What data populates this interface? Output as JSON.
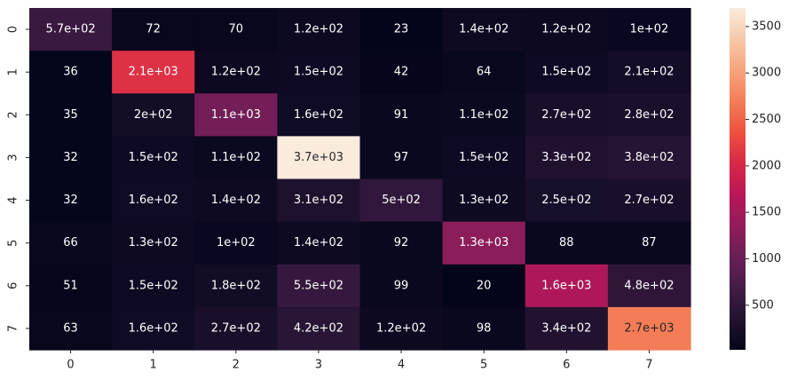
{
  "chart_data": {
    "type": "heatmap",
    "title": "",
    "xlabel": "",
    "ylabel": "",
    "x_categories": [
      "0",
      "1",
      "2",
      "3",
      "4",
      "5",
      "6",
      "7"
    ],
    "y_categories": [
      "0",
      "1",
      "2",
      "3",
      "4",
      "5",
      "6",
      "7"
    ],
    "values": [
      [
        570,
        72,
        70,
        120,
        23,
        140,
        120,
        100
      ],
      [
        36,
        2100,
        120,
        150,
        42,
        64,
        150,
        210
      ],
      [
        35,
        200,
        1100,
        160,
        91,
        110,
        270,
        280
      ],
      [
        32,
        150,
        110,
        3700,
        97,
        150,
        330,
        380
      ],
      [
        32,
        160,
        140,
        310,
        500,
        130,
        250,
        270
      ],
      [
        66,
        130,
        100,
        140,
        92,
        1300,
        88,
        87
      ],
      [
        51,
        150,
        180,
        550,
        99,
        20,
        1600,
        480
      ],
      [
        63,
        160,
        270,
        420,
        120,
        98,
        340,
        2700
      ]
    ],
    "annotations": [
      [
        "5.7e+02",
        "72",
        "70",
        "1.2e+02",
        "23",
        "1.4e+02",
        "1.2e+02",
        "1e+02"
      ],
      [
        "36",
        "2.1e+03",
        "1.2e+02",
        "1.5e+02",
        "42",
        "64",
        "1.5e+02",
        "2.1e+02"
      ],
      [
        "35",
        "2e+02",
        "1.1e+03",
        "1.6e+02",
        "91",
        "1.1e+02",
        "2.7e+02",
        "2.8e+02"
      ],
      [
        "32",
        "1.5e+02",
        "1.1e+02",
        "3.7e+03",
        "97",
        "1.5e+02",
        "3.3e+02",
        "3.8e+02"
      ],
      [
        "32",
        "1.6e+02",
        "1.4e+02",
        "3.1e+02",
        "5e+02",
        "1.3e+02",
        "2.5e+02",
        "2.7e+02"
      ],
      [
        "66",
        "1.3e+02",
        "1e+02",
        "1.4e+02",
        "92",
        "1.3e+03",
        "88",
        "87"
      ],
      [
        "51",
        "1.5e+02",
        "1.8e+02",
        "5.5e+02",
        "99",
        "20",
        "1.6e+03",
        "4.8e+02"
      ],
      [
        "63",
        "1.6e+02",
        "2.7e+02",
        "4.2e+02",
        "1.2e+02",
        "98",
        "3.4e+02",
        "2.7e+03"
      ]
    ],
    "colorbar": {
      "min": 20,
      "max": 3700,
      "ticks": [
        500,
        1000,
        1500,
        2000,
        2500,
        3000,
        3500
      ],
      "tick_labels": [
        "500",
        "1000",
        "1500",
        "2000",
        "2500",
        "3000",
        "3500"
      ]
    },
    "colormap": "rocket",
    "colormap_stops": [
      "#03051a",
      "#221331",
      "#451c47",
      "#6a1f56",
      "#921c5b",
      "#b91657",
      "#d92847",
      "#ed513e",
      "#f47d57",
      "#f6a47c",
      "#f6c9a8",
      "#faebdd"
    ],
    "grid": false,
    "legend": "none"
  }
}
